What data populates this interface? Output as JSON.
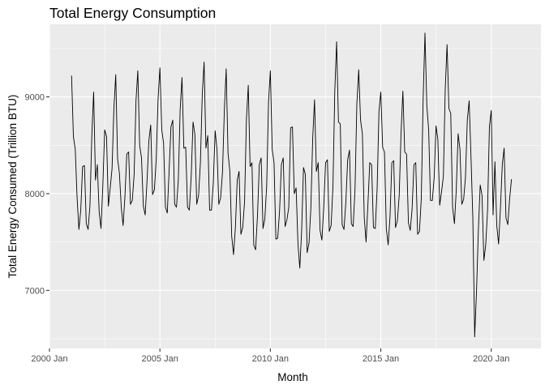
{
  "chart_data": {
    "type": "line",
    "title": "Total Energy Consumption",
    "xlabel": "Month",
    "ylabel": "Total Energy Consumed (Trillion BTU)",
    "x_ticks": [
      {
        "label": "2000 Jan",
        "year": 2000
      },
      {
        "label": "2005 Jan",
        "year": 2005
      },
      {
        "label": "2010 Jan",
        "year": 2010
      },
      {
        "label": "2015 Jan",
        "year": 2015
      },
      {
        "label": "2020 Jan",
        "year": 2020
      }
    ],
    "y_ticks": [
      7000,
      8000,
      9000
    ],
    "xlim": [
      "2000-01",
      "2022-04"
    ],
    "ylim": [
      6400,
      9750
    ],
    "grid": true,
    "series": [
      {
        "start": "2001-01",
        "frequency": "monthly",
        "values": [
          9220,
          8590,
          8460,
          7960,
          7630,
          7830,
          8280,
          8290,
          7690,
          7630,
          7880,
          8600,
          9050,
          8140,
          8300,
          7810,
          7640,
          8090,
          8660,
          8590,
          7870,
          8060,
          8260,
          8880,
          9230,
          8360,
          8210,
          7860,
          7670,
          7970,
          8410,
          8430,
          7890,
          7930,
          8200,
          8960,
          9270,
          8500,
          8370,
          7870,
          7780,
          8130,
          8550,
          8710,
          7990,
          8040,
          8360,
          8980,
          9300,
          8660,
          8520,
          7860,
          7800,
          8240,
          8690,
          8760,
          7890,
          7860,
          8140,
          8870,
          9200,
          8470,
          8480,
          7860,
          7830,
          8180,
          8740,
          8610,
          7890,
          7980,
          8320,
          9020,
          9360,
          8470,
          8600,
          7830,
          7830,
          8110,
          8650,
          8460,
          7890,
          7960,
          8220,
          8860,
          9290,
          8420,
          8230,
          7560,
          7370,
          7650,
          8140,
          8230,
          7580,
          7650,
          7920,
          8770,
          9120,
          8280,
          8320,
          7470,
          7420,
          7770,
          8300,
          8370,
          7640,
          7740,
          8080,
          8950,
          9270,
          8460,
          8320,
          7530,
          7540,
          7820,
          8300,
          8370,
          7660,
          7730,
          7860,
          8680,
          8690,
          8000,
          8060,
          7480,
          7230,
          7620,
          8270,
          8200,
          7390,
          7490,
          7850,
          8570,
          8970,
          8230,
          8320,
          7620,
          7520,
          7860,
          8320,
          8350,
          7610,
          7670,
          8070,
          9060,
          9570,
          8740,
          8720,
          7680,
          7630,
          7910,
          8350,
          8450,
          7690,
          7660,
          8050,
          8930,
          9280,
          8760,
          8620,
          7760,
          7500,
          7890,
          8320,
          8300,
          7650,
          7640,
          8050,
          8850,
          9050,
          8480,
          8430,
          7640,
          7470,
          7760,
          8320,
          8340,
          7650,
          7720,
          7980,
          8630,
          9060,
          8430,
          8410,
          7700,
          7620,
          7840,
          8300,
          8320,
          7580,
          7610,
          7950,
          8980,
          9660,
          8910,
          8660,
          7930,
          7930,
          8170,
          8700,
          8560,
          7880,
          8020,
          8180,
          9080,
          9540,
          8880,
          8830,
          7860,
          7690,
          8040,
          8620,
          8460,
          7890,
          7940,
          8170,
          8760,
          8960,
          8380,
          7750,
          6520,
          6990,
          7620,
          8090,
          7980,
          7310,
          7470,
          7830,
          8690,
          8860,
          7780,
          8330,
          7670,
          7480,
          7850,
          8300,
          8470,
          7750,
          7680,
          7950,
          8150
        ]
      }
    ]
  }
}
